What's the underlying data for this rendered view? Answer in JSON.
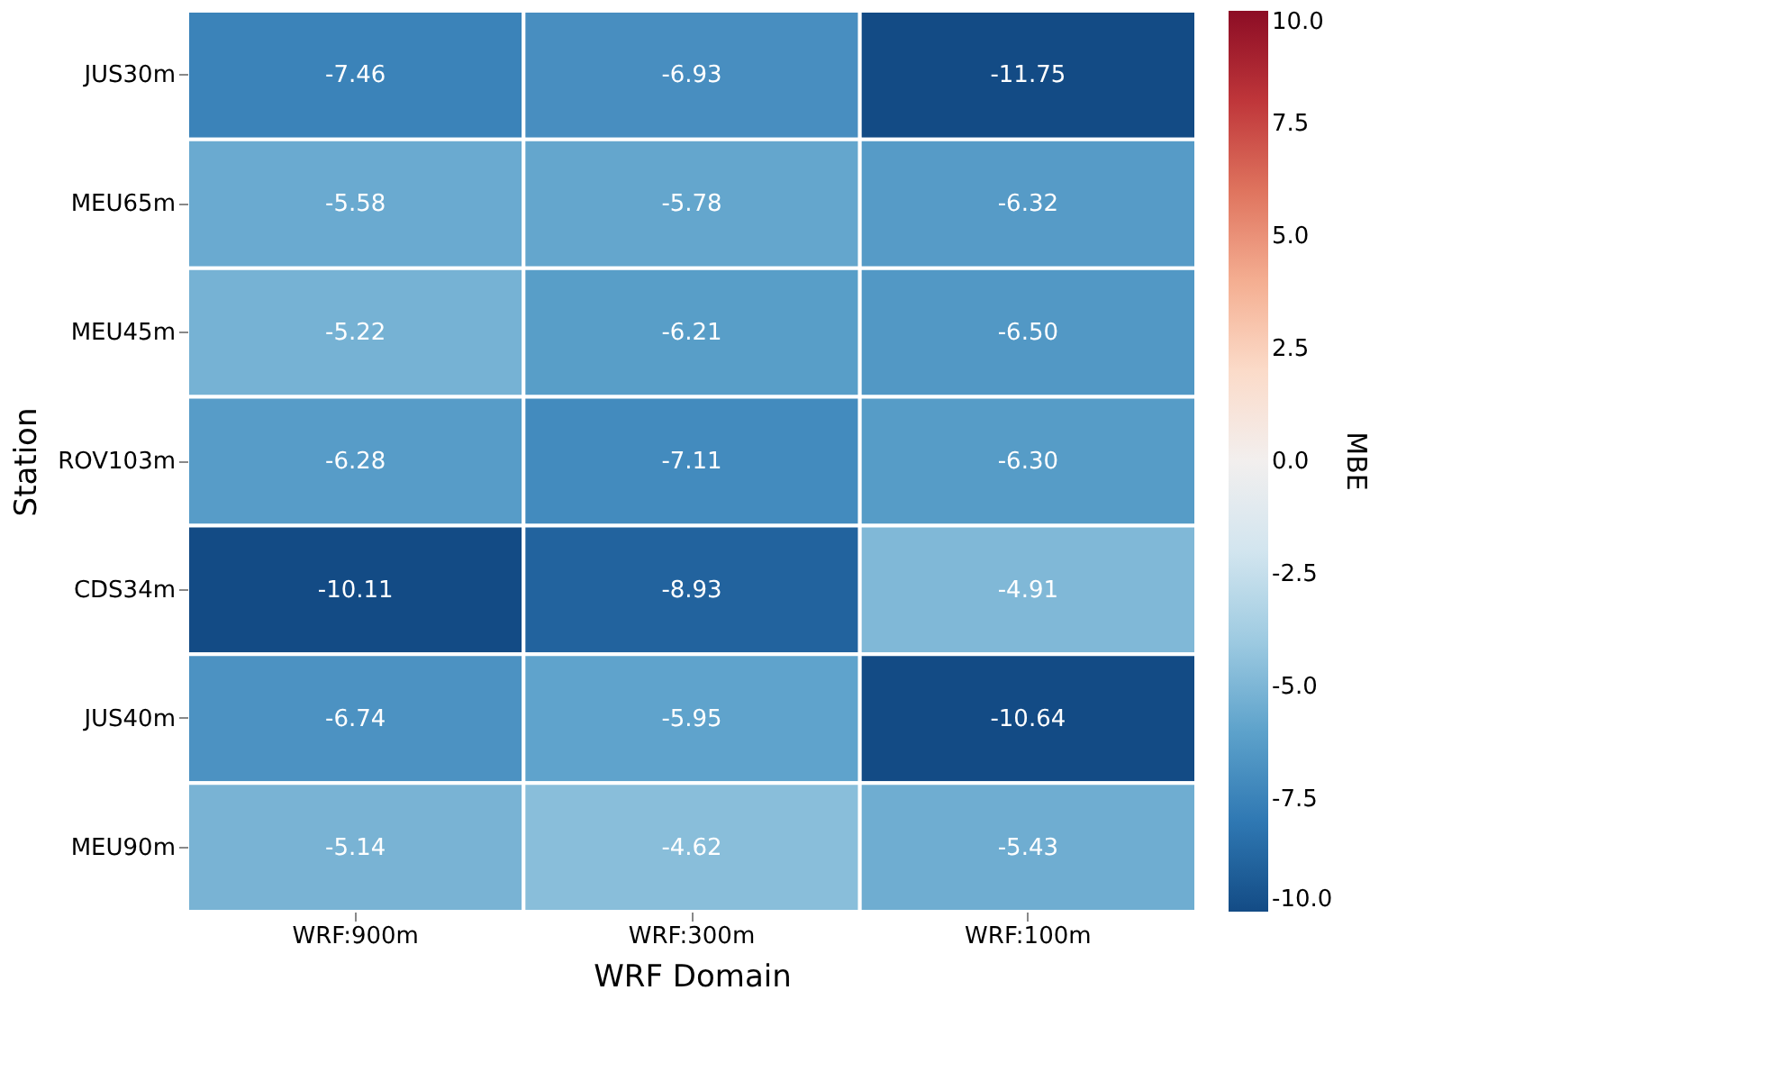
{
  "chart_data": {
    "type": "heatmap",
    "xlabel": "WRF Domain",
    "ylabel": "Station",
    "clabel": "MBE",
    "categories": [
      "WRF:900m",
      "WRF:300m",
      "WRF:100m"
    ],
    "y_categories": [
      "JUS30m",
      "MEU65m",
      "MEU45m",
      "ROV103m",
      "CDS34m",
      "JUS40m",
      "MEU90m"
    ],
    "cells": [
      [
        -7.46,
        -6.93,
        -11.75
      ],
      [
        -5.58,
        -5.78,
        -6.32
      ],
      [
        -5.22,
        -6.21,
        -6.5
      ],
      [
        -6.28,
        -7.11,
        -6.3
      ],
      [
        -10.11,
        -8.93,
        -4.91
      ],
      [
        -6.74,
        -5.95,
        -10.64
      ],
      [
        -5.14,
        -4.62,
        -5.43
      ]
    ],
    "cell_labels": [
      [
        "-7.46",
        "-6.93",
        "-11.75"
      ],
      [
        "-5.58",
        "-5.78",
        "-6.32"
      ],
      [
        "-5.22",
        "-6.21",
        "-6.50"
      ],
      [
        "-6.28",
        "-7.11",
        "-6.30"
      ],
      [
        "-10.11",
        "-8.93",
        "-4.91"
      ],
      [
        "-6.74",
        "-5.95",
        "-10.64"
      ],
      [
        "-5.14",
        "-4.62",
        "-5.43"
      ]
    ],
    "clim": [
      -10,
      10
    ],
    "cticks": [
      {
        "value": -10,
        "label": "-10.0"
      },
      {
        "value": -7.5,
        "label": "-7.5"
      },
      {
        "value": -5,
        "label": "-5.0"
      },
      {
        "value": -2.5,
        "label": "-2.5"
      },
      {
        "value": 0,
        "label": "0.0"
      },
      {
        "value": 2.5,
        "label": "2.5"
      },
      {
        "value": 5,
        "label": "5.0"
      },
      {
        "value": 7.5,
        "label": "7.5"
      },
      {
        "value": 10,
        "label": "10.0"
      }
    ]
  }
}
